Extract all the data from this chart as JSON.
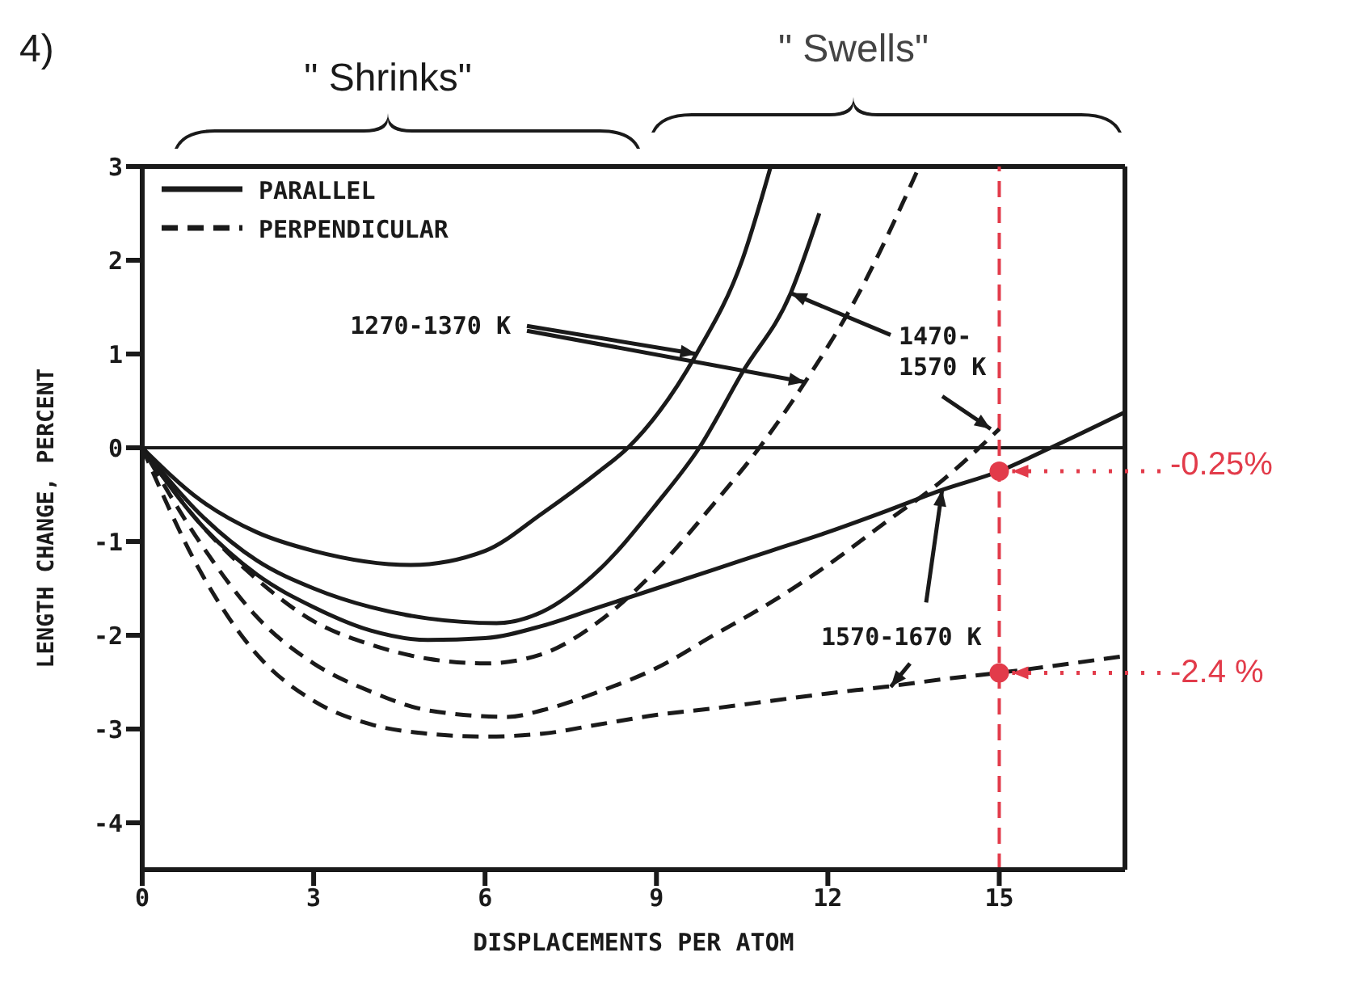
{
  "chart_data": {
    "type": "line",
    "xlabel": "DISPLACEMENTS PER ATOM",
    "ylabel": "LENGTH CHANGE, PERCENT",
    "xlim": [
      0,
      17.2
    ],
    "ylim": [
      -4.5,
      3
    ],
    "xticks": [
      0,
      3,
      6,
      9,
      12,
      15
    ],
    "yticks": [
      -4,
      -3,
      -2,
      -1,
      0,
      1,
      2,
      3
    ],
    "grid": false,
    "legend": "top left",
    "marker": "none",
    "series": [
      {
        "name": "PARALLEL",
        "color": "#1a1a1a",
        "line_style": "solid",
        "x": [
          0,
          1,
          2,
          3,
          4.7,
          6,
          7,
          8,
          8.5,
          9.7,
          10.5,
          11
        ],
        "values": [
          0,
          -0.55,
          -0.9,
          -1.1,
          -1.25,
          -1.1,
          -0.7,
          -0.25,
          0,
          1.0,
          2.0,
          3.0
        ]
      },
      {
        "color": "#1a1a1a",
        "line_style": "solid",
        "x": [
          0,
          1,
          2,
          3,
          4,
          5,
          6.2,
          7,
          8,
          9,
          9.75,
          10.5,
          11.35,
          11.85
        ],
        "values": [
          0,
          -0.7,
          -1.2,
          -1.5,
          -1.7,
          -1.82,
          -1.87,
          -1.75,
          -1.3,
          -0.6,
          0,
          0.8,
          1.65,
          2.5
        ]
      },
      {
        "color": "#1a1a1a",
        "line_style": "solid",
        "x": [
          0,
          1,
          2,
          3,
          4,
          5,
          6,
          7,
          8,
          9,
          10,
          11,
          12,
          13,
          14,
          15,
          15.9,
          17.2
        ],
        "values": [
          0,
          -0.8,
          -1.35,
          -1.7,
          -1.95,
          -2.05,
          -2.03,
          -1.9,
          -1.7,
          -1.5,
          -1.3,
          -1.1,
          -0.9,
          -0.68,
          -0.45,
          -0.25,
          0,
          0.38
        ]
      },
      {
        "name": "PERPENDICULAR",
        "color": "#1a1a1a",
        "line_style": "dashed",
        "x": [
          0,
          1,
          2,
          3,
          4,
          5,
          6,
          7,
          8,
          9,
          10,
          10.8,
          11.6,
          12.5,
          13.6
        ],
        "values": [
          0,
          -0.8,
          -1.4,
          -1.85,
          -2.1,
          -2.25,
          -2.3,
          -2.2,
          -1.85,
          -1.3,
          -0.6,
          0,
          0.7,
          1.6,
          3.0
        ]
      },
      {
        "color": "#1a1a1a",
        "line_style": "dashed",
        "x": [
          0,
          1,
          2,
          3,
          4,
          5,
          6.4,
          7,
          8,
          9,
          10,
          11,
          12,
          13,
          14,
          15
        ],
        "values": [
          0,
          -1.0,
          -1.8,
          -2.3,
          -2.6,
          -2.8,
          -2.87,
          -2.8,
          -2.6,
          -2.35,
          -2.0,
          -1.65,
          -1.25,
          -0.8,
          -0.35,
          0.2
        ]
      },
      {
        "color": "#1a1a1a",
        "line_style": "dashed",
        "x": [
          0,
          1,
          2,
          3,
          4,
          5,
          6,
          7,
          8,
          9,
          10,
          11,
          12,
          13,
          14,
          15,
          17.2
        ],
        "values": [
          0,
          -1.3,
          -2.2,
          -2.7,
          -2.95,
          -3.05,
          -3.08,
          -3.05,
          -2.95,
          -2.85,
          -2.78,
          -2.7,
          -2.62,
          -2.55,
          -2.47,
          -2.4,
          -2.22
        ]
      }
    ],
    "ref_lines": [
      {
        "axis": "y",
        "value": 0,
        "color": "#1a1a1a",
        "line_style": "solid"
      },
      {
        "axis": "x",
        "value": 15,
        "color": "#e23b4a",
        "line_style": "dashed"
      }
    ],
    "annotations": [
      "4)",
      "\" Shrinks\"",
      "\" Swells\"",
      {
        "text": "1270-1370 K",
        "x": 9.7,
        "y": 1.0
      },
      {
        "text": "1470-1570 K",
        "x": 11.35,
        "y": 1.65
      },
      {
        "text": "1570-1670 K",
        "x": 14,
        "y": -0.45
      },
      {
        "text": "-0.25%",
        "x": 15,
        "y": -0.25
      },
      {
        "text": "-2.4 %",
        "x": 15,
        "y": -2.4
      }
    ]
  }
}
